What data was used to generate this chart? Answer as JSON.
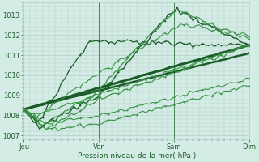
{
  "xlabel": "Pression niveau de la mer( hPa )",
  "bg_color": "#d4ece6",
  "grid_color": "#b0cfc8",
  "dark_green": "#1a5c28",
  "light_green": "#3a9445",
  "ylim": [
    1006.8,
    1013.6
  ],
  "yticks": [
    1007,
    1008,
    1009,
    1010,
    1011,
    1012,
    1013
  ],
  "day_ticks": [
    0,
    1,
    2,
    3
  ],
  "day_labels": [
    "Jeu",
    "Ven",
    "Sam",
    "Dim"
  ]
}
